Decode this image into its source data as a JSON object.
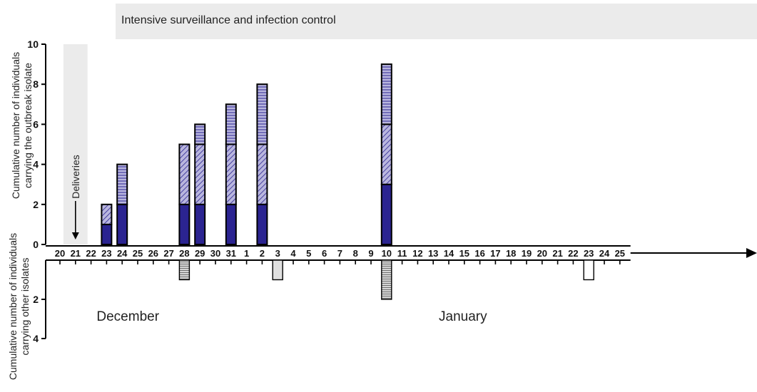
{
  "chart_data": {
    "type": "bar",
    "banner": "Intensive surveillance and infection control",
    "ylabel_upper": [
      "Cumulative number of individuals",
      "carrying the outbreak isolate"
    ],
    "ylabel_lower": [
      "Cumulative number of individuals",
      "carrying other isolates"
    ],
    "upper_ylim": [
      0,
      10
    ],
    "upper_yticks": [
      0,
      2,
      4,
      6,
      8,
      10
    ],
    "lower_ylim": [
      0,
      4
    ],
    "lower_yticks": [
      2,
      4
    ],
    "dates": [
      "20",
      "21",
      "22",
      "23",
      "24",
      "25",
      "26",
      "27",
      "28",
      "29",
      "30",
      "31",
      "1",
      "2",
      "3",
      "4",
      "5",
      "6",
      "7",
      "8",
      "9",
      "10",
      "11",
      "12",
      "13",
      "14",
      "15",
      "16",
      "17",
      "18",
      "19",
      "20",
      "21",
      "22",
      "23",
      "24",
      "25"
    ],
    "months": [
      {
        "name": "December",
        "under_index": 3
      },
      {
        "name": "January",
        "under_index": 25
      }
    ],
    "shaded_date_index": 1,
    "annotation": {
      "text": "Deliveries",
      "date_index": 1
    },
    "colors": {
      "dark": "#2b2491",
      "light": "#b9b6de",
      "gray": "#cfcfcf",
      "lightgray": "#e0e0e0",
      "shade": "#ebebeb"
    },
    "upper_series": [
      {
        "pattern": "solid-dark",
        "values": [
          0,
          0,
          0,
          1,
          2,
          0,
          0,
          0,
          2,
          2,
          0,
          2,
          0,
          2,
          0,
          0,
          0,
          0,
          0,
          0,
          0,
          3,
          0,
          0,
          0,
          0,
          0,
          0,
          0,
          0,
          0,
          0,
          0,
          0,
          0,
          0,
          0
        ]
      },
      {
        "pattern": "diagonal-hatch",
        "values": [
          0,
          0,
          0,
          1,
          0,
          0,
          0,
          0,
          3,
          3,
          0,
          3,
          0,
          3,
          0,
          0,
          0,
          0,
          0,
          0,
          0,
          3,
          0,
          0,
          0,
          0,
          0,
          0,
          0,
          0,
          0,
          0,
          0,
          0,
          0,
          0,
          0
        ]
      },
      {
        "pattern": "horizontal-stripes",
        "values": [
          0,
          0,
          0,
          0,
          2,
          0,
          0,
          0,
          0,
          1,
          0,
          2,
          0,
          3,
          0,
          0,
          0,
          0,
          0,
          0,
          0,
          3,
          0,
          0,
          0,
          0,
          0,
          0,
          0,
          0,
          0,
          0,
          0,
          0,
          0,
          0,
          0
        ]
      }
    ],
    "lower_series": [
      {
        "pattern": "horizontal-stripes-gray",
        "values": [
          0,
          0,
          0,
          0,
          0,
          0,
          0,
          0,
          1,
          0,
          0,
          0,
          0,
          0,
          0,
          0,
          0,
          0,
          0,
          0,
          0,
          2,
          0,
          0,
          0,
          0,
          0,
          0,
          0,
          0,
          0,
          0,
          0,
          0,
          0,
          0,
          0
        ]
      },
      {
        "pattern": "solid-lightgray",
        "values": [
          0,
          0,
          0,
          0,
          0,
          0,
          0,
          0,
          0,
          0,
          0,
          0,
          0,
          0,
          1,
          0,
          0,
          0,
          0,
          0,
          0,
          0,
          0,
          0,
          0,
          0,
          0,
          0,
          0,
          0,
          0,
          0,
          0,
          0,
          0,
          0,
          0
        ]
      },
      {
        "pattern": "open",
        "values": [
          0,
          0,
          0,
          0,
          0,
          0,
          0,
          0,
          0,
          0,
          0,
          0,
          0,
          0,
          0,
          0,
          0,
          0,
          0,
          0,
          0,
          0,
          0,
          0,
          0,
          0,
          0,
          0,
          0,
          0,
          0,
          0,
          0,
          0,
          1,
          0,
          0
        ]
      }
    ]
  }
}
